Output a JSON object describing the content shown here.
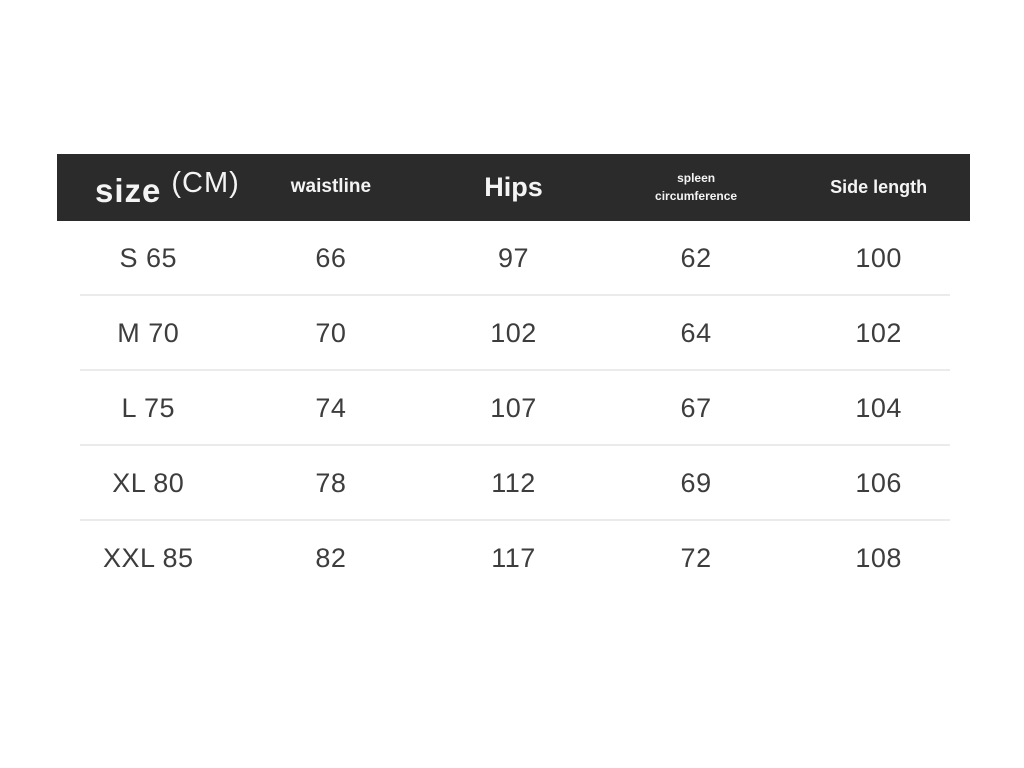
{
  "colors": {
    "background": "#ffffff",
    "header_bg": "#2b2b2b",
    "header_text": "#f4f4f4",
    "body_text": "#3d3d3d",
    "divider": "#ebebeb"
  },
  "header": {
    "size_label": "size",
    "unit_label": "(CM)"
  },
  "chart_data": {
    "type": "table",
    "title": "size (CM)",
    "columns": [
      "size (CM)",
      "waistline",
      "Hips",
      "spleen circumference",
      "Side length"
    ],
    "rows": [
      [
        "S 65",
        "66",
        "97",
        "62",
        "100"
      ],
      [
        "M 70",
        "70",
        "102",
        "64",
        "102"
      ],
      [
        "L 75",
        "74",
        "107",
        "67",
        "104"
      ],
      [
        "XL 80",
        "78",
        "112",
        "69",
        "106"
      ],
      [
        "XXL 85",
        "82",
        "117",
        "72",
        "108"
      ]
    ]
  }
}
